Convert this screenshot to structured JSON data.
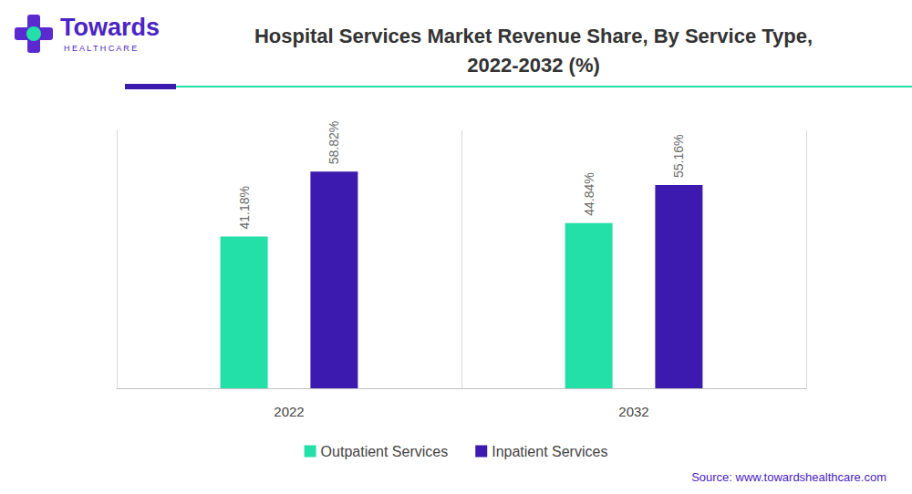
{
  "chart_data": {
    "type": "bar",
    "title": "Hospital Services Market Revenue Share, By Service Type,\n2022-2032 (%)",
    "brand": {
      "name": "Towards",
      "tagline": "HEALTHCARE"
    },
    "source": "Source: www.towardshealthcare.com",
    "categories": [
      "2022",
      "2032"
    ],
    "series": [
      {
        "name": "Outpatient Services",
        "color": "#22e0a8",
        "values": [
          41.18,
          44.84
        ],
        "value_labels": [
          "41.18%",
          "44.84%"
        ]
      },
      {
        "name": "Inpatient Services",
        "color": "#3d1aaf",
        "values": [
          58.82,
          55.16
        ],
        "value_labels": [
          "58.82%",
          "55.16%"
        ]
      }
    ],
    "ylim": [
      0,
      70
    ],
    "grid": false,
    "legend": "bottom",
    "data_labels": true,
    "tick_labels": "x"
  }
}
